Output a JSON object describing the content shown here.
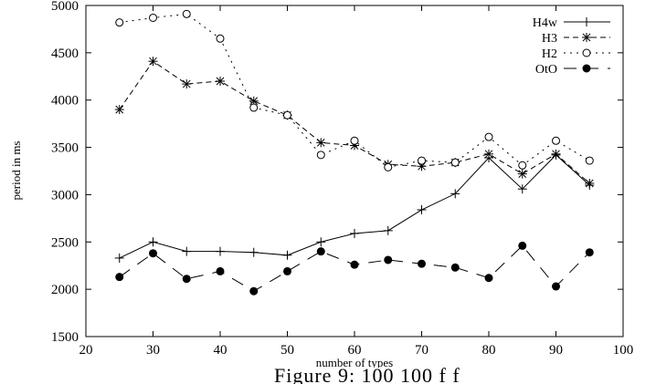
{
  "chart_data": {
    "type": "line",
    "xlabel": "number of types",
    "ylabel": "period in ms",
    "xlim": [
      20,
      100
    ],
    "ylim": [
      1500,
      5000
    ],
    "x_ticks": [
      20,
      30,
      40,
      50,
      60,
      70,
      80,
      90,
      100
    ],
    "y_ticks": [
      1500,
      2000,
      2500,
      3000,
      3500,
      4000,
      4500,
      5000
    ],
    "grid": false,
    "legend_position": "top-right",
    "x": [
      25,
      30,
      35,
      40,
      45,
      50,
      55,
      60,
      65,
      70,
      75,
      80,
      85,
      90,
      95
    ],
    "series": [
      {
        "name": "H4w",
        "marker": "plus",
        "line": "solid",
        "values": [
          2330,
          2500,
          2400,
          2400,
          2390,
          2360,
          2500,
          2590,
          2620,
          2840,
          3010,
          3390,
          3060,
          3420,
          3100
        ]
      },
      {
        "name": "H3",
        "marker": "star",
        "line": "dashed",
        "values": [
          3900,
          4410,
          4170,
          4200,
          3990,
          3840,
          3550,
          3520,
          3320,
          3300,
          3340,
          3430,
          3220,
          3430,
          3120
        ]
      },
      {
        "name": "H2",
        "marker": "open-circle",
        "line": "dotted",
        "values": [
          4820,
          4870,
          4910,
          4650,
          3920,
          3840,
          3420,
          3570,
          3290,
          3360,
          3340,
          3610,
          3310,
          3570,
          3360
        ]
      },
      {
        "name": "OtO",
        "marker": "filled-circle",
        "line": "long-dash",
        "values": [
          2130,
          2380,
          2110,
          2190,
          1980,
          2190,
          2400,
          2260,
          2310,
          2270,
          2230,
          2120,
          2460,
          2030,
          2390
        ]
      }
    ]
  },
  "caption": "Figure 9:       100        100  f     f"
}
